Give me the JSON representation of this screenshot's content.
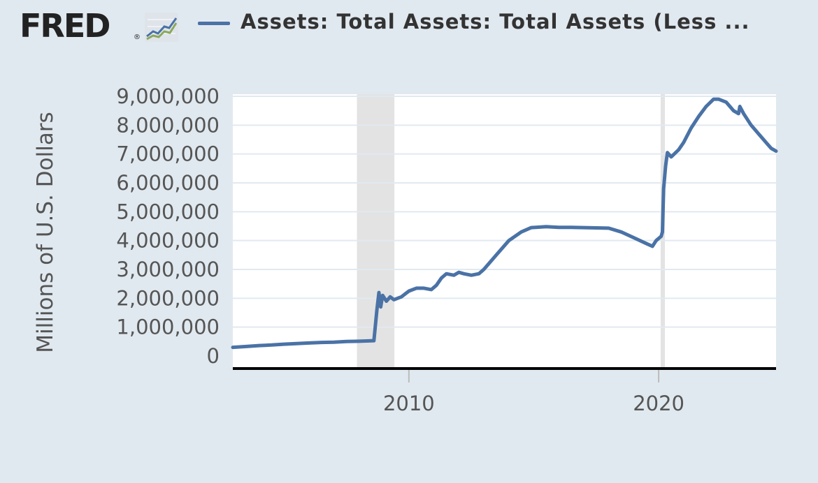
{
  "header": {
    "logo": "FRED",
    "logo_reg": "®",
    "series_title": "Assets: Total Assets: Total Assets (Less ..."
  },
  "colors": {
    "series": "#4a72a6",
    "background": "#e1e9f0",
    "plot_bg": "#ffffff",
    "grid": "#e1e9f0",
    "recession": "#e3e3e3",
    "axis": "#000000"
  },
  "chart_data": {
    "type": "line",
    "ylabel": "Millions of U.S. Dollars",
    "xlim": [
      2002.95,
      2024.7
    ],
    "ylim": [
      0,
      9000000
    ],
    "y_ticks": [
      {
        "value": 9000000,
        "label": "9,000,000"
      },
      {
        "value": 8000000,
        "label": "8,000,000"
      },
      {
        "value": 7000000,
        "label": "7,000,000"
      },
      {
        "value": 6000000,
        "label": "6,000,000"
      },
      {
        "value": 5000000,
        "label": "5,000,000"
      },
      {
        "value": 4000000,
        "label": "4,000,000"
      },
      {
        "value": 3000000,
        "label": "3,000,000"
      },
      {
        "value": 2000000,
        "label": "2,000,000"
      },
      {
        "value": 1000000,
        "label": "1,000,000"
      },
      {
        "value": 0,
        "label": "0"
      }
    ],
    "x_ticks": [
      {
        "value": 2010,
        "label": "2010"
      },
      {
        "value": 2020,
        "label": "2020"
      }
    ],
    "recessions": [
      [
        2007.92,
        2009.42
      ],
      [
        2020.08,
        2020.25
      ]
    ],
    "grid": true,
    "series": [
      {
        "x": [
          2002.95,
          2003.5,
          2004.0,
          2004.5,
          2005.0,
          2005.5,
          2006.0,
          2006.5,
          2007.0,
          2007.5,
          2008.0,
          2008.3,
          2008.6,
          2008.72,
          2008.8,
          2008.87,
          2008.95,
          2009.1,
          2009.25,
          2009.4,
          2009.55,
          2009.7,
          2009.85,
          2010.0,
          2010.3,
          2010.6,
          2010.9,
          2011.1,
          2011.3,
          2011.5,
          2011.8,
          2012.0,
          2012.2,
          2012.5,
          2012.8,
          2013.0,
          2013.5,
          2014.0,
          2014.5,
          2014.9,
          2015.5,
          2016.0,
          2016.5,
          2017.0,
          2017.5,
          2018.0,
          2018.5,
          2019.0,
          2019.5,
          2019.75,
          2019.9,
          2020.1,
          2020.15,
          2020.2,
          2020.28,
          2020.35,
          2020.5,
          2020.8,
          2021.0,
          2021.3,
          2021.6,
          2021.9,
          2022.2,
          2022.4,
          2022.7,
          2022.9,
          2023.0,
          2023.2,
          2023.25,
          2023.4,
          2023.7,
          2024.0,
          2024.3,
          2024.5,
          2024.7
        ],
        "values": [
          300000,
          330000,
          360000,
          380000,
          410000,
          430000,
          450000,
          470000,
          480000,
          500000,
          510000,
          520000,
          530000,
          1600000,
          2200000,
          1700000,
          2100000,
          1900000,
          2050000,
          1950000,
          2000000,
          2050000,
          2150000,
          2250000,
          2350000,
          2350000,
          2300000,
          2450000,
          2700000,
          2850000,
          2800000,
          2900000,
          2850000,
          2800000,
          2850000,
          3000000,
          3500000,
          4000000,
          4300000,
          4450000,
          4480000,
          4460000,
          4460000,
          4450000,
          4440000,
          4430000,
          4300000,
          4100000,
          3900000,
          3800000,
          4000000,
          4150000,
          4300000,
          5800000,
          6600000,
          7050000,
          6900000,
          7150000,
          7400000,
          7900000,
          8300000,
          8650000,
          8900000,
          8900000,
          8800000,
          8600000,
          8500000,
          8400000,
          8650000,
          8400000,
          8000000,
          7700000,
          7400000,
          7200000,
          7100000
        ]
      }
    ]
  }
}
